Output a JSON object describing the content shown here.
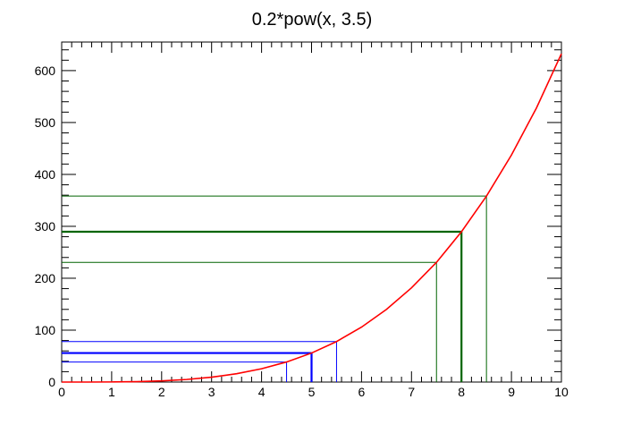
{
  "chart_data": {
    "type": "line",
    "title": "0.2*pow(x, 3.5)",
    "xlabel": "",
    "ylabel": "",
    "xlim": [
      0,
      10
    ],
    "ylim": [
      0,
      655
    ],
    "x_ticks": [
      0,
      1,
      2,
      3,
      4,
      5,
      6,
      7,
      8,
      9,
      10
    ],
    "y_ticks": [
      0,
      100,
      200,
      300,
      400,
      500,
      600
    ],
    "x_tick_labels": [
      "0",
      "1",
      "2",
      "3",
      "4",
      "5",
      "6",
      "7",
      "8",
      "9",
      "10"
    ],
    "y_tick_labels": [
      "0",
      "100",
      "200",
      "300",
      "400",
      "500",
      "600"
    ],
    "series": [
      {
        "color": "#ff0000",
        "function": "0.2*pow(x, 3.5)",
        "x": [
          0,
          0.5,
          1,
          1.5,
          2,
          2.5,
          3,
          3.5,
          4,
          4.5,
          5,
          5.5,
          6,
          6.5,
          7,
          7.5,
          8,
          8.5,
          9,
          9.5,
          10
        ],
        "y": [
          0,
          0.02,
          0.2,
          0.83,
          2.26,
          4.94,
          9.35,
          16.04,
          25.6,
          38.66,
          55.9,
          78.03,
          105.8,
          139.98,
          181.5,
          230.6,
          289.6,
          358.24,
          437.38,
          527.94,
          632.46
        ]
      }
    ],
    "marker_groups": [
      {
        "color": "#0000ff",
        "lines": [
          {
            "x": 4.5,
            "y": 38.66,
            "emphasis": false
          },
          {
            "x": 5,
            "y": 55.9,
            "emphasis": true
          },
          {
            "x": 5.5,
            "y": 78.03,
            "emphasis": false
          }
        ]
      },
      {
        "color": "#006400",
        "lines": [
          {
            "x": 7.5,
            "y": 230.6,
            "emphasis": false
          },
          {
            "x": 8,
            "y": 289.6,
            "emphasis": true
          },
          {
            "x": 8.5,
            "y": 358.24,
            "emphasis": false
          }
        ]
      }
    ],
    "grid": false,
    "legend": "none"
  }
}
